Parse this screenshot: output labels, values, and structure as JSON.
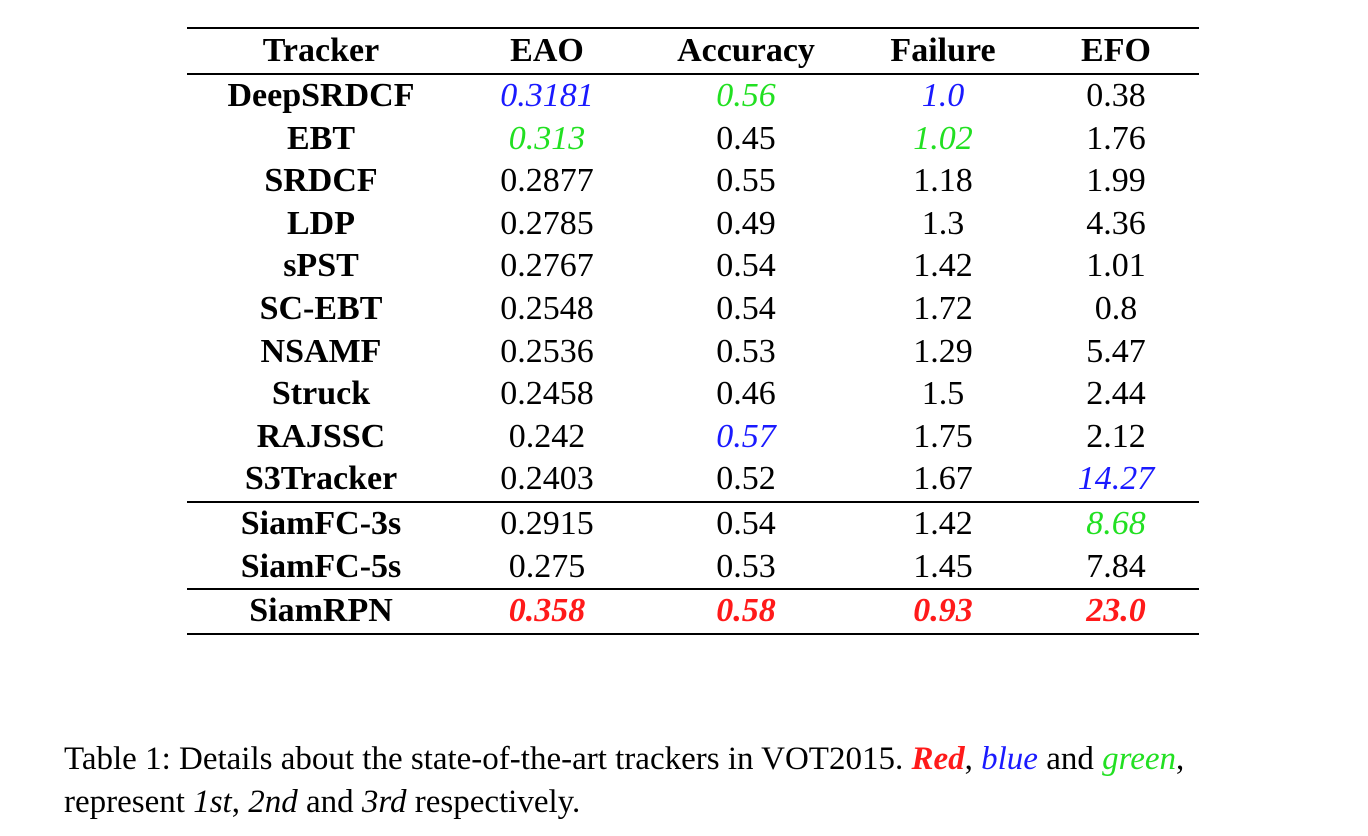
{
  "table": {
    "headers": [
      "Tracker",
      "EAO",
      "Accuracy",
      "Failure",
      "EFO"
    ],
    "rows": [
      {
        "name": "DeepSRDCF",
        "eao": "0.3181",
        "accuracy": "0.56",
        "failure": "1.0",
        "efo": "0.38"
      },
      {
        "name": "EBT",
        "eao": "0.313",
        "accuracy": "0.45",
        "failure": "1.02",
        "efo": "1.76"
      },
      {
        "name": "SRDCF",
        "eao": "0.2877",
        "accuracy": "0.55",
        "failure": "1.18",
        "efo": "1.99"
      },
      {
        "name": "LDP",
        "eao": "0.2785",
        "accuracy": "0.49",
        "failure": "1.3",
        "efo": "4.36"
      },
      {
        "name": "sPST",
        "eao": "0.2767",
        "accuracy": "0.54",
        "failure": "1.42",
        "efo": "1.01"
      },
      {
        "name": "SC-EBT",
        "eao": "0.2548",
        "accuracy": "0.54",
        "failure": "1.72",
        "efo": "0.8"
      },
      {
        "name": "NSAMF",
        "eao": "0.2536",
        "accuracy": "0.53",
        "failure": "1.29",
        "efo": "5.47"
      },
      {
        "name": "Struck",
        "eao": "0.2458",
        "accuracy": "0.46",
        "failure": "1.5",
        "efo": "2.44"
      },
      {
        "name": "RAJSSC",
        "eao": "0.242",
        "accuracy": "0.57",
        "failure": "1.75",
        "efo": "2.12"
      },
      {
        "name": "S3Tracker",
        "eao": "0.2403",
        "accuracy": "0.52",
        "failure": "1.67",
        "efo": "14.27"
      },
      {
        "name": "SiamFC-3s",
        "eao": "0.2915",
        "accuracy": "0.54",
        "failure": "1.42",
        "efo": "8.68"
      },
      {
        "name": "SiamFC-5s",
        "eao": "0.275",
        "accuracy": "0.53",
        "failure": "1.45",
        "efo": "7.84"
      },
      {
        "name": "SiamRPN",
        "eao": "0.358",
        "accuracy": "0.58",
        "failure": "0.93",
        "efo": "23.0"
      }
    ]
  },
  "rank_colors": {
    "first": "#ff1a1a",
    "second": "#1a1aff",
    "third": "#22e022"
  },
  "caption": {
    "prefix": "Table 1: Details about the state-of-the-art trackers in VOT2015. ",
    "red": "Red",
    "sep1": ", ",
    "blue": "blue",
    "and1": " and ",
    "green": "green",
    "comma": ",",
    "line2_prefix": "represent ",
    "first": "1st",
    "sep2": ", ",
    "second": "2nd",
    "and2": " and ",
    "third": "3rd",
    "suffix": " respectively."
  }
}
